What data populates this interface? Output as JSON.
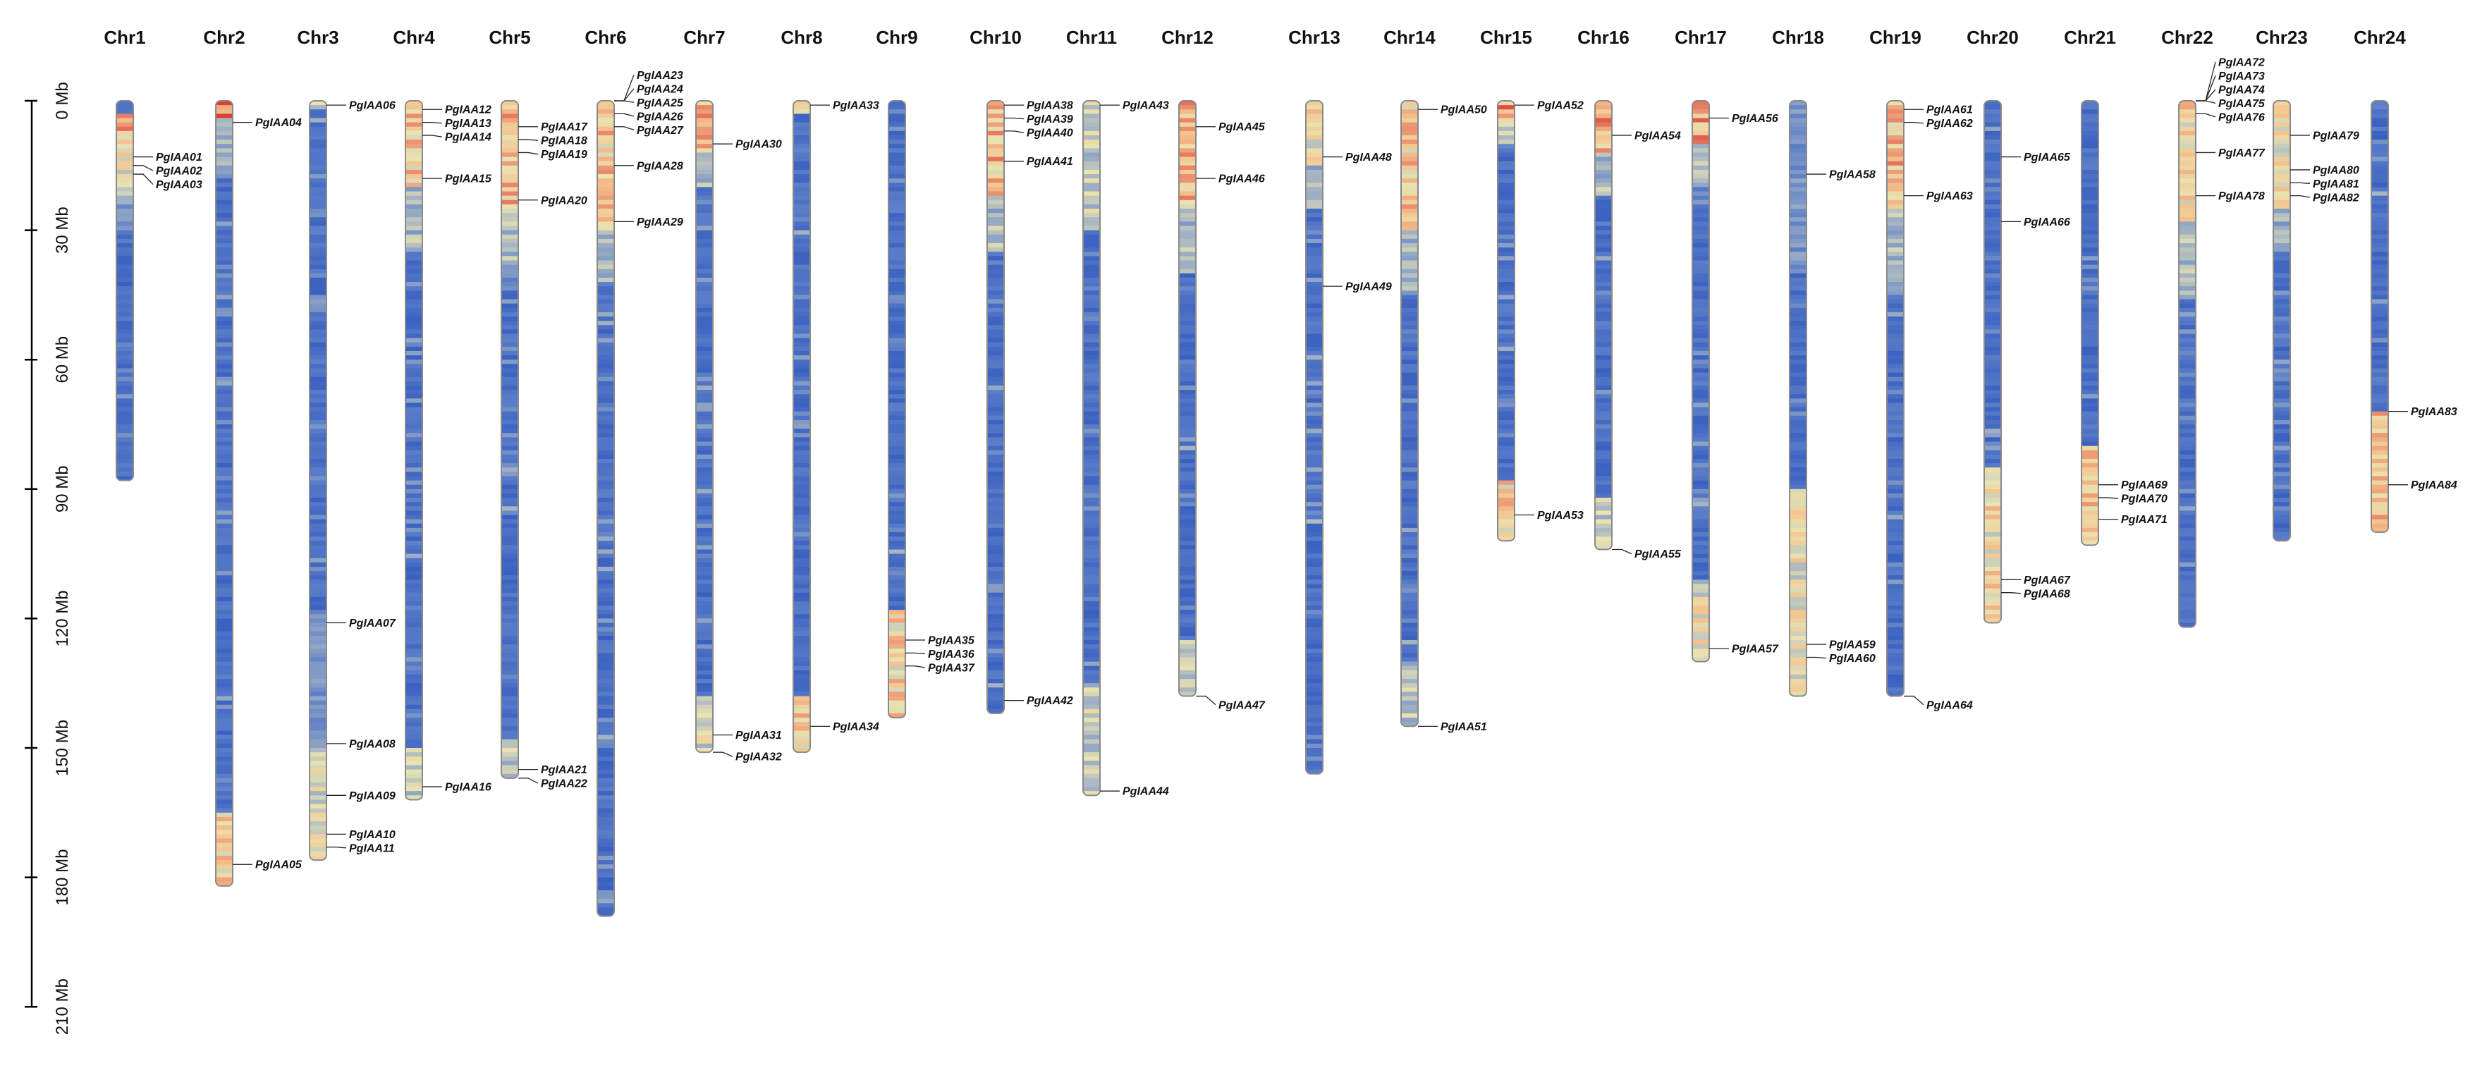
{
  "chart_data": {
    "type": "chromosome-ideogram",
    "title": "",
    "ylabel": "",
    "y_unit": "Mb",
    "ylim": [
      0,
      210
    ],
    "y_ticks": [
      0,
      30,
      60,
      90,
      120,
      150,
      180,
      210
    ],
    "y_tick_labels": [
      "0 Mb",
      "30 Mb",
      "60 Mb",
      "90 Mb",
      "120 Mb",
      "150 Mb",
      "180 Mb",
      "210 Mb"
    ],
    "legend": "none",
    "heatmap_colors": [
      "#2c55bd",
      "#5a7dc8",
      "#9fb0c4",
      "#e9e3b2",
      "#f4c48e",
      "#eb8a6c",
      "#d8413b"
    ],
    "chromosomes": [
      {
        "name": "Chr1",
        "length": 88,
        "hot": [
          [
            3,
            8,
            0.95
          ],
          [
            8,
            22,
            0.65
          ],
          [
            22,
            30,
            0.35
          ]
        ],
        "genes": [
          {
            "name": "PgIAA01",
            "pos": 13
          },
          {
            "name": "PgIAA02",
            "pos": 15
          },
          {
            "name": "PgIAA03",
            "pos": 17
          }
        ]
      },
      {
        "name": "Chr2",
        "length": 182,
        "hot": [
          [
            0,
            4,
            1.0
          ],
          [
            4,
            18,
            0.4
          ],
          [
            165,
            182,
            0.75
          ]
        ],
        "genes": [
          {
            "name": "PgIAA04",
            "pos": 5
          },
          {
            "name": "PgIAA05",
            "pos": 177
          }
        ]
      },
      {
        "name": "Chr3",
        "length": 176,
        "hot": [
          [
            0,
            2,
            0.5
          ],
          [
            118,
            150,
            0.3
          ],
          [
            150,
            176,
            0.6
          ]
        ],
        "genes": [
          {
            "name": "PgIAA06",
            "pos": 1
          },
          {
            "name": "PgIAA07",
            "pos": 121
          },
          {
            "name": "PgIAA08",
            "pos": 149
          },
          {
            "name": "PgIAA09",
            "pos": 161
          },
          {
            "name": "PgIAA10",
            "pos": 170
          },
          {
            "name": "PgIAA11",
            "pos": 173
          }
        ]
      },
      {
        "name": "Chr4",
        "length": 162,
        "hot": [
          [
            0,
            20,
            0.8
          ],
          [
            20,
            35,
            0.45
          ],
          [
            150,
            162,
            0.55
          ]
        ],
        "genes": [
          {
            "name": "PgIAA12",
            "pos": 2
          },
          {
            "name": "PgIAA13",
            "pos": 5
          },
          {
            "name": "PgIAA14",
            "pos": 8
          },
          {
            "name": "PgIAA15",
            "pos": 18
          },
          {
            "name": "PgIAA16",
            "pos": 159
          }
        ]
      },
      {
        "name": "Chr5",
        "length": 157,
        "hot": [
          [
            0,
            25,
            0.85
          ],
          [
            25,
            40,
            0.45
          ],
          [
            148,
            157,
            0.55
          ]
        ],
        "genes": [
          {
            "name": "PgIAA17",
            "pos": 6
          },
          {
            "name": "PgIAA18",
            "pos": 9
          },
          {
            "name": "PgIAA19",
            "pos": 12
          },
          {
            "name": "PgIAA20",
            "pos": 23
          },
          {
            "name": "PgIAA21",
            "pos": 155
          },
          {
            "name": "PgIAA22",
            "pos": 158
          }
        ]
      },
      {
        "name": "Chr6",
        "length": 189,
        "hot": [
          [
            0,
            30,
            0.8
          ],
          [
            30,
            42,
            0.45
          ]
        ],
        "genes": [
          {
            "name": "PgIAA23",
            "pos": -6
          },
          {
            "name": "PgIAA24",
            "pos": -3
          },
          {
            "name": "PgIAA25",
            "pos": 0
          },
          {
            "name": "PgIAA26",
            "pos": 3
          },
          {
            "name": "PgIAA27",
            "pos": 6
          },
          {
            "name": "PgIAA28",
            "pos": 15
          },
          {
            "name": "PgIAA29",
            "pos": 28
          }
        ]
      },
      {
        "name": "Chr7",
        "length": 151,
        "hot": [
          [
            0,
            12,
            0.85
          ],
          [
            12,
            20,
            0.45
          ],
          [
            138,
            151,
            0.6
          ]
        ],
        "genes": [
          {
            "name": "PgIAA30",
            "pos": 10
          },
          {
            "name": "PgIAA31",
            "pos": 147
          },
          {
            "name": "PgIAA32",
            "pos": 152
          }
        ]
      },
      {
        "name": "Chr8",
        "length": 151,
        "hot": [
          [
            0,
            3,
            0.6
          ],
          [
            138,
            151,
            0.8
          ]
        ],
        "genes": [
          {
            "name": "PgIAA33",
            "pos": 1
          },
          {
            "name": "PgIAA34",
            "pos": 145
          }
        ]
      },
      {
        "name": "Chr9",
        "length": 143,
        "hot": [
          [
            118,
            143,
            0.75
          ]
        ],
        "genes": [
          {
            "name": "PgIAA35",
            "pos": 125
          },
          {
            "name": "PgIAA36",
            "pos": 128
          },
          {
            "name": "PgIAA37",
            "pos": 131
          }
        ]
      },
      {
        "name": "Chr10",
        "length": 142,
        "hot": [
          [
            0,
            22,
            0.85
          ],
          [
            22,
            35,
            0.45
          ]
        ],
        "genes": [
          {
            "name": "PgIAA38",
            "pos": 1
          },
          {
            "name": "PgIAA39",
            "pos": 4
          },
          {
            "name": "PgIAA40",
            "pos": 7
          },
          {
            "name": "PgIAA41",
            "pos": 14
          },
          {
            "name": "PgIAA42",
            "pos": 139
          }
        ]
      },
      {
        "name": "Chr11",
        "length": 161,
        "hot": [
          [
            0,
            30,
            0.55
          ],
          [
            135,
            161,
            0.55
          ]
        ],
        "genes": [
          {
            "name": "PgIAA43",
            "pos": 1
          },
          {
            "name": "PgIAA44",
            "pos": 160
          }
        ]
      },
      {
        "name": "Chr12",
        "length": 138,
        "hot": [
          [
            0,
            25,
            0.85
          ],
          [
            25,
            40,
            0.45
          ],
          [
            125,
            138,
            0.55
          ]
        ],
        "genes": [
          {
            "name": "PgIAA45",
            "pos": 6
          },
          {
            "name": "PgIAA46",
            "pos": 18
          },
          {
            "name": "PgIAA47",
            "pos": 140
          }
        ]
      },
      {
        "name": "Chr13",
        "length": 156,
        "hot": [
          [
            0,
            15,
            0.7
          ],
          [
            15,
            25,
            0.4
          ]
        ],
        "genes": [
          {
            "name": "PgIAA48",
            "pos": 13
          },
          {
            "name": "PgIAA49",
            "pos": 43
          }
        ]
      },
      {
        "name": "Chr14",
        "length": 145,
        "hot": [
          [
            0,
            30,
            0.8
          ],
          [
            30,
            45,
            0.45
          ],
          [
            130,
            145,
            0.5
          ]
        ],
        "genes": [
          {
            "name": "PgIAA50",
            "pos": 2
          },
          {
            "name": "PgIAA51",
            "pos": 145
          }
        ]
      },
      {
        "name": "Chr15",
        "length": 102,
        "hot": [
          [
            0,
            5,
            0.95
          ],
          [
            5,
            10,
            0.5
          ],
          [
            88,
            102,
            0.75
          ]
        ],
        "genes": [
          {
            "name": "PgIAA52",
            "pos": 1
          },
          {
            "name": "PgIAA53",
            "pos": 96
          }
        ]
      },
      {
        "name": "Chr16",
        "length": 104,
        "hot": [
          [
            0,
            12,
            0.9
          ],
          [
            12,
            22,
            0.45
          ],
          [
            92,
            104,
            0.5
          ]
        ],
        "genes": [
          {
            "name": "PgIAA54",
            "pos": 8
          },
          {
            "name": "PgIAA55",
            "pos": 105
          }
        ]
      },
      {
        "name": "Chr17",
        "length": 130,
        "hot": [
          [
            0,
            10,
            0.9
          ],
          [
            10,
            20,
            0.45
          ],
          [
            112,
            130,
            0.65
          ]
        ],
        "genes": [
          {
            "name": "PgIAA56",
            "pos": 4
          },
          {
            "name": "PgIAA57",
            "pos": 127
          }
        ]
      },
      {
        "name": "Chr18",
        "length": 138,
        "hot": [
          [
            0,
            40,
            0.3
          ],
          [
            90,
            138,
            0.65
          ]
        ],
        "genes": [
          {
            "name": "PgIAA58",
            "pos": 17
          },
          {
            "name": "PgIAA59",
            "pos": 126
          },
          {
            "name": "PgIAA60",
            "pos": 129
          }
        ]
      },
      {
        "name": "Chr19",
        "length": 138,
        "hot": [
          [
            0,
            25,
            0.85
          ],
          [
            25,
            45,
            0.45
          ]
        ],
        "genes": [
          {
            "name": "PgIAA61",
            "pos": 2
          },
          {
            "name": "PgIAA62",
            "pos": 5
          },
          {
            "name": "PgIAA63",
            "pos": 22
          },
          {
            "name": "PgIAA64",
            "pos": 140
          }
        ]
      },
      {
        "name": "Chr20",
        "length": 121,
        "hot": [
          [
            85,
            121,
            0.7
          ]
        ],
        "genes": [
          {
            "name": "PgIAA65",
            "pos": 13
          },
          {
            "name": "PgIAA66",
            "pos": 28
          },
          {
            "name": "PgIAA67",
            "pos": 111
          },
          {
            "name": "PgIAA68",
            "pos": 114
          }
        ]
      },
      {
        "name": "Chr21",
        "length": 103,
        "hot": [
          [
            80,
            103,
            0.8
          ]
        ],
        "genes": [
          {
            "name": "PgIAA69",
            "pos": 89
          },
          {
            "name": "PgIAA70",
            "pos": 92
          },
          {
            "name": "PgIAA71",
            "pos": 97
          }
        ]
      },
      {
        "name": "Chr22",
        "length": 122,
        "hot": [
          [
            0,
            28,
            0.75
          ],
          [
            28,
            45,
            0.45
          ]
        ],
        "genes": [
          {
            "name": "PgIAA72",
            "pos": -9
          },
          {
            "name": "PgIAA73",
            "pos": -6
          },
          {
            "name": "PgIAA74",
            "pos": -3
          },
          {
            "name": "PgIAA75",
            "pos": 0
          },
          {
            "name": "PgIAA76",
            "pos": 3
          },
          {
            "name": "PgIAA77",
            "pos": 12
          },
          {
            "name": "PgIAA78",
            "pos": 22
          }
        ]
      },
      {
        "name": "Chr23",
        "length": 102,
        "hot": [
          [
            0,
            25,
            0.65
          ],
          [
            25,
            35,
            0.4
          ]
        ],
        "genes": [
          {
            "name": "PgIAA79",
            "pos": 8
          },
          {
            "name": "PgIAA80",
            "pos": 16
          },
          {
            "name": "PgIAA81",
            "pos": 19
          },
          {
            "name": "PgIAA82",
            "pos": 22
          }
        ]
      },
      {
        "name": "Chr24",
        "length": 100,
        "hot": [
          [
            72,
            100,
            0.8
          ]
        ],
        "genes": [
          {
            "name": "PgIAA83",
            "pos": 72
          },
          {
            "name": "PgIAA84",
            "pos": 89
          }
        ]
      }
    ]
  }
}
